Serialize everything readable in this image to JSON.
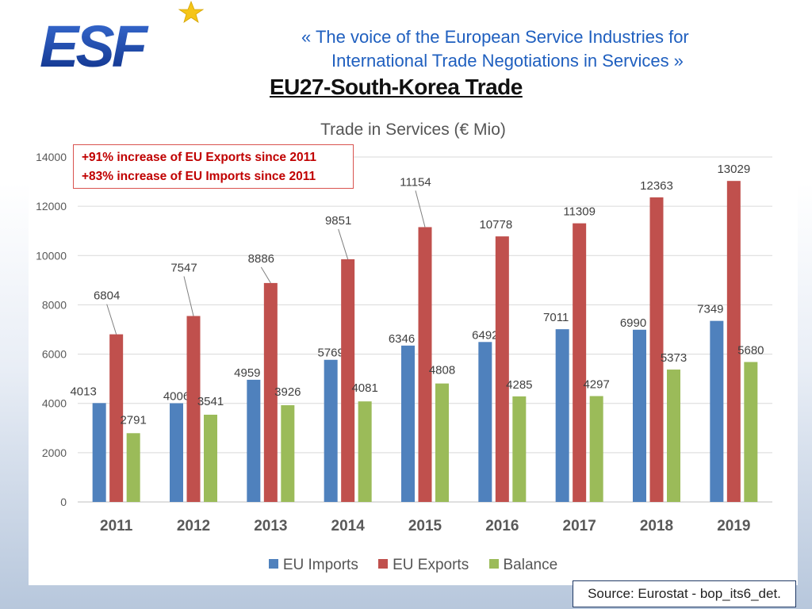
{
  "header": {
    "logo_text": "ESF",
    "tagline_line1": "«  The voice of the European Service Industries for",
    "tagline_line2": "International Trade Negotiations in Services  »",
    "slide_title": "EU27-South-Korea Trade"
  },
  "callout": {
    "line1": "+91% increase of EU Exports since 2011",
    "line2": "+83% increase of EU Imports since 2011"
  },
  "source": "Source: Eurostat - bop_its6_det.",
  "colors": {
    "imports": "#4f81bd",
    "exports": "#c0504d",
    "balance": "#9bbb59",
    "accent": "#1f5fbf"
  },
  "chart_data": {
    "type": "bar",
    "title": "Trade in Services (€ Mio)",
    "categories": [
      "2011",
      "2012",
      "2013",
      "2014",
      "2015",
      "2016",
      "2017",
      "2018",
      "2019"
    ],
    "series": [
      {
        "name": "EU Imports",
        "values": [
          4013,
          4006,
          4959,
          5769,
          6346,
          6492,
          7011,
          6990,
          7349
        ]
      },
      {
        "name": "EU Exports",
        "values": [
          6804,
          7547,
          8886,
          9851,
          11154,
          10778,
          11309,
          12363,
          13029
        ]
      },
      {
        "name": "Balance",
        "values": [
          2791,
          3541,
          3926,
          4081,
          4808,
          4285,
          4297,
          5373,
          5680
        ]
      }
    ],
    "yticks": [
      "0",
      "2000",
      "4000",
      "6000",
      "8000",
      "10000",
      "12000",
      "14000"
    ],
    "ylim": [
      0,
      14000
    ],
    "legend_position": "bottom",
    "grid": true
  }
}
